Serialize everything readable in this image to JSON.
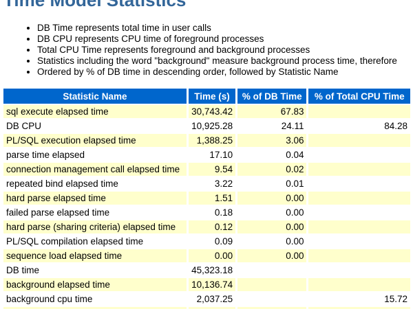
{
  "page": {
    "title": "Time Model Statistics"
  },
  "notes": [
    "DB Time represents total time in user calls",
    "DB CPU represents CPU time of foreground processes",
    "Total CPU Time represents foreground and background processes",
    "Statistics including the word \"background\" measure background process time, therefore",
    "Ordered by % of DB time in descending order, followed by Statistic Name"
  ],
  "table": {
    "columns": [
      "Statistic Name",
      "Time (s)",
      "% of DB Time",
      "% of Total CPU Time"
    ],
    "rows": [
      {
        "name": "sql execute elapsed time",
        "time": "30,743.42",
        "pct_db": "67.83",
        "pct_cpu": ""
      },
      {
        "name": "DB CPU",
        "time": "10,925.28",
        "pct_db": "24.11",
        "pct_cpu": "84.28"
      },
      {
        "name": "PL/SQL execution elapsed time",
        "time": "1,388.25",
        "pct_db": "3.06",
        "pct_cpu": ""
      },
      {
        "name": "parse time elapsed",
        "time": "17.10",
        "pct_db": "0.04",
        "pct_cpu": ""
      },
      {
        "name": "connection management call elapsed time",
        "time": "9.54",
        "pct_db": "0.02",
        "pct_cpu": ""
      },
      {
        "name": "repeated bind elapsed time",
        "time": "3.22",
        "pct_db": "0.01",
        "pct_cpu": ""
      },
      {
        "name": "hard parse elapsed time",
        "time": "1.51",
        "pct_db": "0.00",
        "pct_cpu": ""
      },
      {
        "name": "failed parse elapsed time",
        "time": "0.18",
        "pct_db": "0.00",
        "pct_cpu": ""
      },
      {
        "name": "hard parse (sharing criteria) elapsed time",
        "time": "0.12",
        "pct_db": "0.00",
        "pct_cpu": ""
      },
      {
        "name": "PL/SQL compilation elapsed time",
        "time": "0.09",
        "pct_db": "0.00",
        "pct_cpu": ""
      },
      {
        "name": "sequence load elapsed time",
        "time": "0.00",
        "pct_db": "0.00",
        "pct_cpu": ""
      },
      {
        "name": "DB time",
        "time": "45,323.18",
        "pct_db": "",
        "pct_cpu": ""
      },
      {
        "name": "background elapsed time",
        "time": "10,136.74",
        "pct_db": "",
        "pct_cpu": ""
      },
      {
        "name": "background cpu time",
        "time": "2,037.25",
        "pct_db": "",
        "pct_cpu": "15.72"
      }
    ],
    "partial_row_visible": true
  },
  "colors": {
    "header_bg": "#0066CC",
    "header_text": "#FFFFFF",
    "row_alt_bg": "#FFFFCC",
    "title_text": "#336699"
  }
}
